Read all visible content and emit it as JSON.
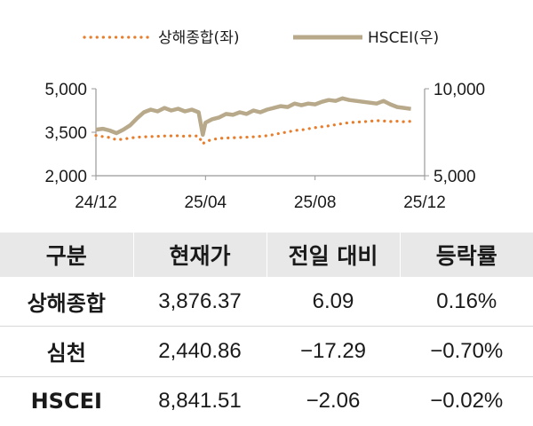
{
  "chart_data": {
    "type": "line",
    "legend": {
      "placement": "top-center"
    },
    "x_ticks": [
      "24/12",
      "25/04",
      "25/08",
      "25/12"
    ],
    "y_left": {
      "range": [
        2000,
        5000
      ],
      "ticks": [
        "2,000",
        "3,500",
        "5,000"
      ]
    },
    "y_right": {
      "range": [
        5000,
        10000
      ],
      "ticks": [
        "5,000",
        "10,000"
      ]
    },
    "series": [
      {
        "name": "상해종합(좌)",
        "axis": "left",
        "style": "dotted",
        "color": "#e87d2c",
        "x": [
          0,
          0.25,
          0.5,
          0.75,
          1,
          1.25,
          1.5,
          1.75,
          2,
          2.25,
          2.5,
          2.75,
          3,
          3.25,
          3.5,
          3.75,
          3.9,
          4,
          4.25,
          4.5,
          4.75,
          5,
          5.25,
          5.5,
          5.75,
          6,
          6.25,
          6.5,
          6.75,
          7,
          7.25,
          7.5,
          7.75,
          8,
          8.25,
          8.5,
          8.75,
          9,
          9.25,
          9.5,
          9.75,
          10,
          10.25,
          10.5,
          10.75,
          11,
          11.25,
          11.5
        ],
        "values": [
          3390,
          3350,
          3320,
          3240,
          3260,
          3300,
          3330,
          3340,
          3350,
          3360,
          3370,
          3375,
          3380,
          3360,
          3380,
          3365,
          3100,
          3180,
          3250,
          3290,
          3300,
          3310,
          3320,
          3330,
          3340,
          3360,
          3380,
          3420,
          3470,
          3510,
          3560,
          3580,
          3620,
          3660,
          3690,
          3720,
          3760,
          3800,
          3830,
          3850,
          3860,
          3880,
          3900,
          3890,
          3870,
          3880,
          3860,
          3876
        ]
      },
      {
        "name": "HSCEI(우)",
        "axis": "right",
        "style": "solid",
        "color": "#b8a98b",
        "x": [
          0,
          0.25,
          0.5,
          0.75,
          1,
          1.25,
          1.5,
          1.75,
          2,
          2.25,
          2.5,
          2.75,
          3,
          3.25,
          3.5,
          3.75,
          3.9,
          4,
          4.25,
          4.5,
          4.75,
          5,
          5.25,
          5.5,
          5.75,
          6,
          6.25,
          6.5,
          6.75,
          7,
          7.25,
          7.5,
          7.75,
          8,
          8.25,
          8.5,
          8.75,
          9,
          9.25,
          9.5,
          9.75,
          10,
          10.25,
          10.5,
          10.75,
          11,
          11.25,
          11.5
        ],
        "values": [
          7650,
          7700,
          7600,
          7450,
          7650,
          7900,
          8300,
          8650,
          8800,
          8700,
          8900,
          8750,
          8850,
          8700,
          8800,
          8650,
          7350,
          8050,
          8250,
          8350,
          8550,
          8500,
          8650,
          8550,
          8750,
          8650,
          8800,
          8900,
          9000,
          8950,
          9150,
          9050,
          9150,
          9100,
          9250,
          9350,
          9300,
          9450,
          9350,
          9300,
          9250,
          9200,
          9150,
          9300,
          9100,
          8950,
          8900,
          8841
        ]
      }
    ]
  },
  "table": {
    "headers": [
      "구분",
      "현재가",
      "전일 대비",
      "등락률"
    ],
    "rows": [
      [
        "상해종합",
        "3,876.37",
        "6.09",
        "0.16%"
      ],
      [
        "심천",
        "2,440.86",
        "−17.29",
        "−0.70%"
      ],
      [
        "HSCEI",
        "8,841.51",
        "−2.06",
        "−0.02%"
      ]
    ]
  }
}
